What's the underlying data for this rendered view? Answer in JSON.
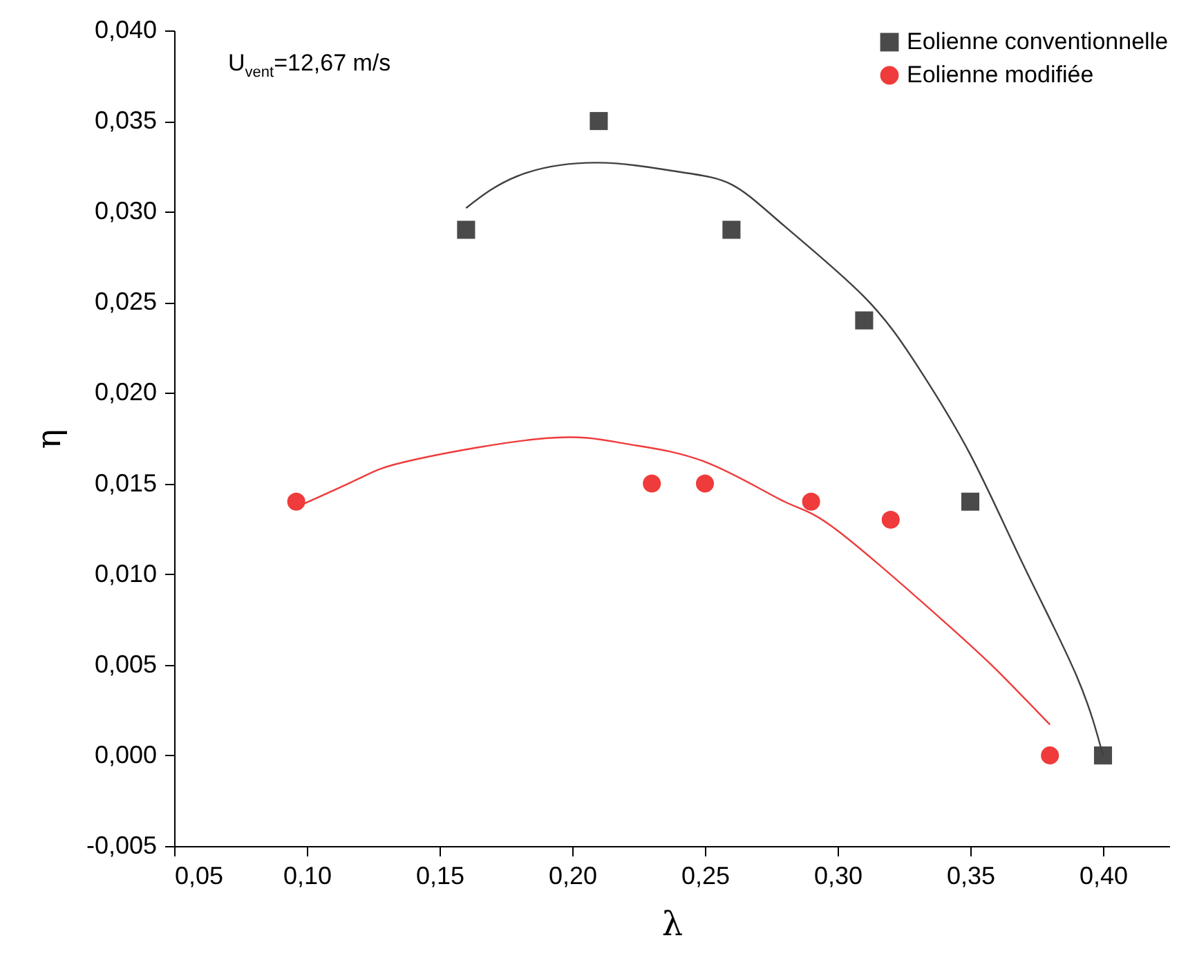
{
  "chart_data": {
    "type": "scatter",
    "xlabel": "λ",
    "ylabel": "η",
    "annotations": [
      "U$_{vent}$=12,67 m/s"
    ],
    "xlim": [
      0.05,
      0.425
    ],
    "ylim": [
      -0.005,
      0.04
    ],
    "xticks": [
      {
        "value": 0.05,
        "label": "0,05"
      },
      {
        "value": 0.1,
        "label": "0,10"
      },
      {
        "value": 0.15,
        "label": "0,15"
      },
      {
        "value": 0.2,
        "label": "0,20"
      },
      {
        "value": 0.25,
        "label": "0,25"
      },
      {
        "value": 0.3,
        "label": "0,30"
      },
      {
        "value": 0.35,
        "label": "0,35"
      },
      {
        "value": 0.4,
        "label": "0,40"
      }
    ],
    "yticks": [
      {
        "value": -0.005,
        "label": "-0,005"
      },
      {
        "value": 0,
        "label": "0,000"
      },
      {
        "value": 0.005,
        "label": "0,005"
      },
      {
        "value": 0.01,
        "label": "0,010"
      },
      {
        "value": 0.015,
        "label": "0,015"
      },
      {
        "value": 0.02,
        "label": "0,020"
      },
      {
        "value": 0.025,
        "label": "0,025"
      },
      {
        "value": 0.03,
        "label": "0,030"
      },
      {
        "value": 0.035,
        "label": "0,035"
      },
      {
        "value": 0.04,
        "label": "0,040"
      }
    ],
    "legend": "top right",
    "series": [
      {
        "name": "Eolienne conventionnelle",
        "marker": "square",
        "color": "#4a4a4a",
        "x": [
          0.16,
          0.21,
          0.26,
          0.31,
          0.35,
          0.4
        ],
        "values": [
          0.029,
          0.035,
          0.029,
          0.024,
          0.014,
          0.0
        ]
      },
      {
        "name": "Eolienne modifiée",
        "marker": "circle",
        "color": "#ef3b3b",
        "x": [
          0.096,
          0.23,
          0.25,
          0.29,
          0.32,
          0.38
        ],
        "values": [
          0.014,
          0.015,
          0.015,
          0.014,
          0.013,
          0.0
        ]
      },
      {
        "type": "line",
        "color": "#404040",
        "x": [
          0.16,
          0.18,
          0.21,
          0.24,
          0.26,
          0.28,
          0.31,
          0.33,
          0.35,
          0.37,
          0.39,
          0.4
        ],
        "values": [
          0.0302,
          0.032,
          0.0327,
          0.0322,
          0.0315,
          0.0292,
          0.0253,
          0.0215,
          0.0166,
          0.0105,
          0.0044,
          0.0
        ]
      },
      {
        "type": "line",
        "color": "#ef3b3b",
        "x": [
          0.096,
          0.12,
          0.14,
          0.19,
          0.22,
          0.25,
          0.28,
          0.3,
          0.34,
          0.36,
          0.38
        ],
        "values": [
          0.0137,
          0.0153,
          0.0163,
          0.0175,
          0.0172,
          0.0162,
          0.014,
          0.0124,
          0.0074,
          0.0047,
          0.0017
        ]
      }
    ]
  }
}
